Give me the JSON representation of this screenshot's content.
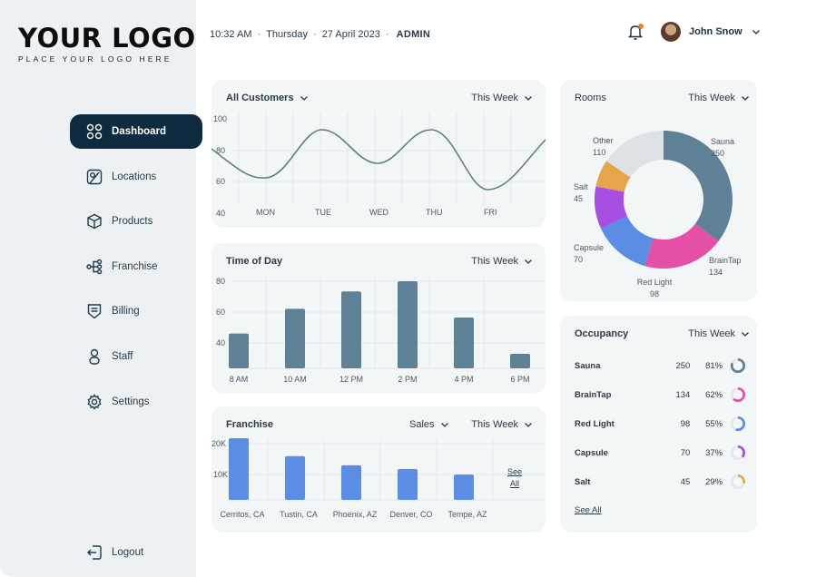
{
  "logo": {
    "main": "YOUR LOGO",
    "sub": "PLACE YOUR LOGO HERE"
  },
  "nav": [
    {
      "label": "Dashboard",
      "icon": "grid-icon",
      "active": true
    },
    {
      "label": "Locations",
      "icon": "map-icon"
    },
    {
      "label": "Products",
      "icon": "box-icon"
    },
    {
      "label": "Franchise",
      "icon": "network-icon"
    },
    {
      "label": "Billing",
      "icon": "receipt-icon"
    },
    {
      "label": "Staff",
      "icon": "person-icon"
    },
    {
      "label": "Settings",
      "icon": "gear-icon"
    }
  ],
  "logout_label": "Logout",
  "header": {
    "time": "10:32 AM",
    "day": "Thursday",
    "date": "27 April 2023",
    "role": "ADMIN",
    "user": "John Snow"
  },
  "customers": {
    "title": "All Customers",
    "period": "This Week",
    "y_ticks": [
      "100",
      "80",
      "60",
      "40"
    ],
    "x_labels": [
      "MON",
      "TUE",
      "WED",
      "THU",
      "FRI"
    ]
  },
  "time_of_day": {
    "title": "Time of Day",
    "period": "This Week",
    "y_ticks": [
      "80",
      "60",
      "40"
    ],
    "categories": [
      "8 AM",
      "10 AM",
      "12 PM",
      "2 PM",
      "4 PM",
      "6 PM"
    ],
    "values": [
      44,
      61,
      73,
      80,
      55,
      30
    ]
  },
  "franchise": {
    "title": "Franchise",
    "metric": "Sales",
    "period": "This Week",
    "y_ticks": [
      "20K",
      "10K"
    ],
    "categories": [
      "Cerritos, CA",
      "Tustin, CA",
      "Phoenix, AZ",
      "Denver, CO",
      "Tempe, AZ"
    ],
    "values": [
      20000,
      14200,
      11200,
      10000,
      8200
    ],
    "see_all": [
      "See",
      "All"
    ]
  },
  "rooms": {
    "title": "Rooms",
    "period": "This Week",
    "slices": [
      {
        "name": "Sauna",
        "value": "250",
        "color": "#5f8196"
      },
      {
        "name": "BrainTap",
        "value": "134",
        "color": "#e44fa8"
      },
      {
        "name": "Red Light",
        "value": "98",
        "color": "#5a8de3"
      },
      {
        "name": "Capsule",
        "value": "70",
        "color": "#a64fe0"
      },
      {
        "name": "Salt",
        "value": "45",
        "color": "#e6a44b"
      },
      {
        "name": "Other",
        "value": "110",
        "color": "#dde2e6"
      }
    ]
  },
  "occupancy": {
    "title": "Occupancy",
    "period": "This Week",
    "rows": [
      {
        "name": "Sauna",
        "count": "250",
        "pct": "81%",
        "color": "#5f8196"
      },
      {
        "name": "BrainTap",
        "count": "134",
        "pct": "62%",
        "color": "#e44fa8"
      },
      {
        "name": "Red Light",
        "count": "98",
        "pct": "55%",
        "color": "#5a8de3"
      },
      {
        "name": "Capsule",
        "count": "70",
        "pct": "37%",
        "color": "#a64fe0"
      },
      {
        "name": "Salt",
        "count": "45",
        "pct": "29%",
        "color": "#e6a44b"
      }
    ],
    "see_all": "See All"
  }
}
